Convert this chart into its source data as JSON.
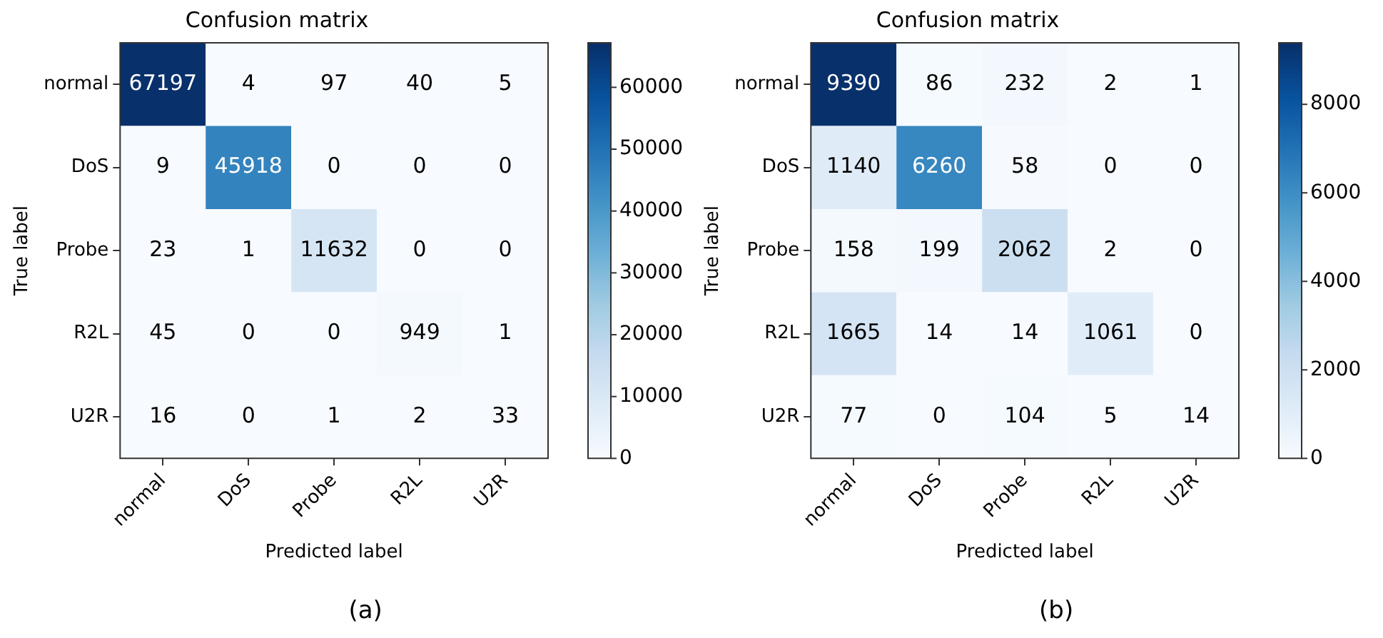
{
  "chart_data": [
    {
      "type": "heatmap",
      "title": "Confusion matrix",
      "xlabel": "Predicted label",
      "ylabel": "True label",
      "categories": [
        "normal",
        "DoS",
        "Probe",
        "R2L",
        "U2R"
      ],
      "y_categories": [
        "normal",
        "DoS",
        "Probe",
        "R2L",
        "U2R"
      ],
      "cells": [
        [
          67197,
          4,
          97,
          40,
          5
        ],
        [
          9,
          45918,
          0,
          0,
          0
        ],
        [
          23,
          1,
          11632,
          0,
          0
        ],
        [
          45,
          0,
          0,
          949,
          1
        ],
        [
          16,
          0,
          1,
          2,
          33
        ]
      ],
      "clim": [
        0,
        67197
      ],
      "cticks": [
        0,
        10000,
        20000,
        30000,
        40000,
        50000,
        60000
      ],
      "data_labels": true,
      "annotations": [
        "(a)"
      ]
    },
    {
      "type": "heatmap",
      "title": "Confusion matrix",
      "xlabel": "Predicted label",
      "ylabel": "True label",
      "categories": [
        "normal",
        "DoS",
        "Probe",
        "R2L",
        "U2R"
      ],
      "y_categories": [
        "normal",
        "DoS",
        "Probe",
        "R2L",
        "U2R"
      ],
      "cells": [
        [
          9390,
          86,
          232,
          2,
          1
        ],
        [
          1140,
          6260,
          58,
          0,
          0
        ],
        [
          158,
          199,
          2062,
          2,
          0
        ],
        [
          1665,
          14,
          14,
          1061,
          0
        ],
        [
          77,
          0,
          104,
          5,
          14
        ]
      ],
      "clim": [
        0,
        9390
      ],
      "cticks": [
        0,
        2000,
        4000,
        6000,
        8000
      ],
      "data_labels": true,
      "annotations": [
        "(b)"
      ]
    }
  ]
}
